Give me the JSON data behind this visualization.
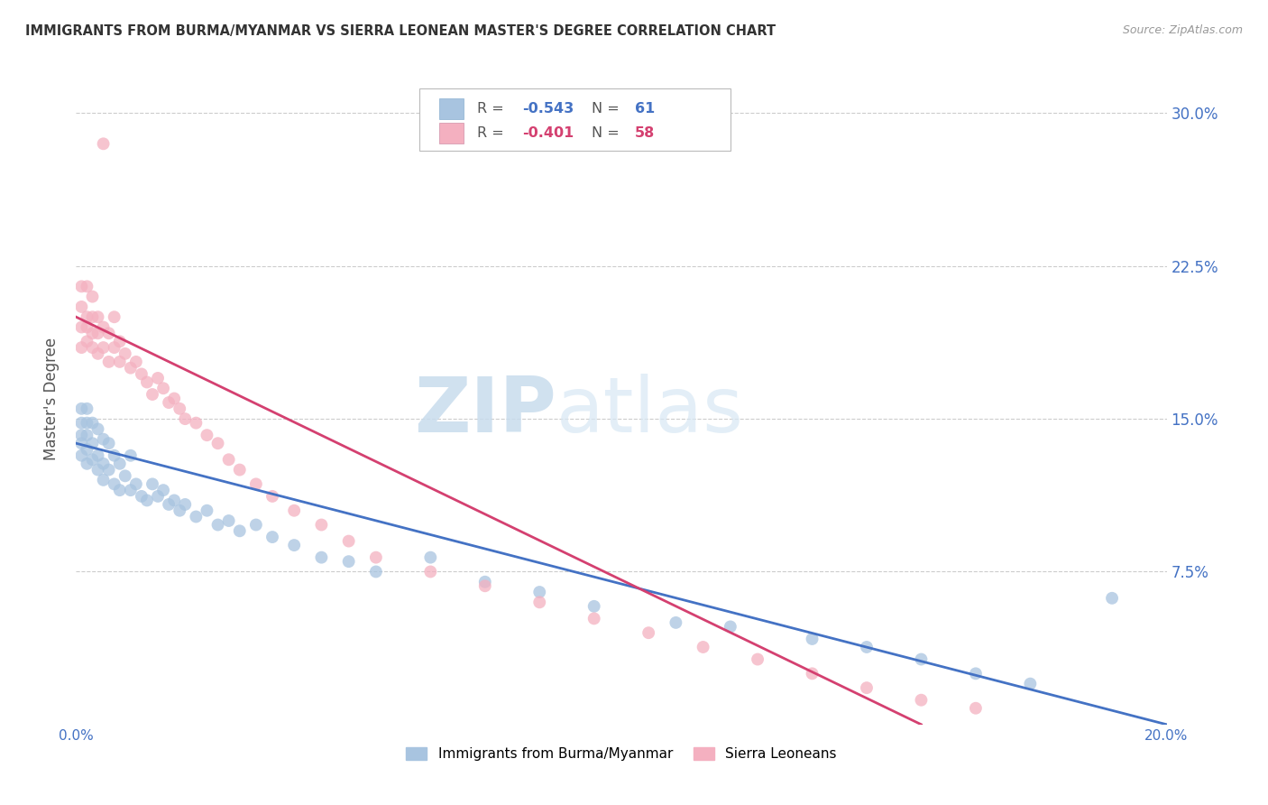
{
  "title": "IMMIGRANTS FROM BURMA/MYANMAR VS SIERRA LEONEAN MASTER'S DEGREE CORRELATION CHART",
  "source": "Source: ZipAtlas.com",
  "ylabel": "Master's Degree",
  "ytick_labels": [
    "30.0%",
    "22.5%",
    "15.0%",
    "7.5%"
  ],
  "ytick_values": [
    0.3,
    0.225,
    0.15,
    0.075
  ],
  "xlim": [
    0.0,
    0.2
  ],
  "ylim": [
    0.0,
    0.32
  ],
  "watermark_zip": "ZIP",
  "watermark_atlas": "atlas",
  "blue_scatter_x": [
    0.001,
    0.001,
    0.001,
    0.001,
    0.001,
    0.002,
    0.002,
    0.002,
    0.002,
    0.002,
    0.003,
    0.003,
    0.003,
    0.004,
    0.004,
    0.004,
    0.005,
    0.005,
    0.005,
    0.006,
    0.006,
    0.007,
    0.007,
    0.008,
    0.008,
    0.009,
    0.01,
    0.01,
    0.011,
    0.012,
    0.013,
    0.014,
    0.015,
    0.016,
    0.017,
    0.018,
    0.019,
    0.02,
    0.022,
    0.024,
    0.026,
    0.028,
    0.03,
    0.033,
    0.036,
    0.04,
    0.045,
    0.05,
    0.055,
    0.065,
    0.075,
    0.085,
    0.095,
    0.11,
    0.12,
    0.135,
    0.145,
    0.155,
    0.165,
    0.175,
    0.19
  ],
  "blue_scatter_y": [
    0.155,
    0.148,
    0.142,
    0.138,
    0.132,
    0.155,
    0.148,
    0.142,
    0.135,
    0.128,
    0.148,
    0.138,
    0.13,
    0.145,
    0.132,
    0.125,
    0.14,
    0.128,
    0.12,
    0.138,
    0.125,
    0.132,
    0.118,
    0.128,
    0.115,
    0.122,
    0.132,
    0.115,
    0.118,
    0.112,
    0.11,
    0.118,
    0.112,
    0.115,
    0.108,
    0.11,
    0.105,
    0.108,
    0.102,
    0.105,
    0.098,
    0.1,
    0.095,
    0.098,
    0.092,
    0.088,
    0.082,
    0.08,
    0.075,
    0.082,
    0.07,
    0.065,
    0.058,
    0.05,
    0.048,
    0.042,
    0.038,
    0.032,
    0.025,
    0.02,
    0.062
  ],
  "pink_scatter_x": [
    0.001,
    0.001,
    0.001,
    0.001,
    0.002,
    0.002,
    0.002,
    0.002,
    0.003,
    0.003,
    0.003,
    0.003,
    0.004,
    0.004,
    0.004,
    0.005,
    0.005,
    0.006,
    0.006,
    0.007,
    0.007,
    0.008,
    0.008,
    0.009,
    0.01,
    0.011,
    0.012,
    0.013,
    0.014,
    0.015,
    0.016,
    0.017,
    0.018,
    0.019,
    0.02,
    0.022,
    0.024,
    0.026,
    0.028,
    0.03,
    0.033,
    0.036,
    0.04,
    0.045,
    0.05,
    0.055,
    0.065,
    0.075,
    0.085,
    0.095,
    0.105,
    0.115,
    0.125,
    0.135,
    0.145,
    0.155,
    0.165,
    0.005
  ],
  "pink_scatter_y": [
    0.215,
    0.205,
    0.195,
    0.185,
    0.215,
    0.2,
    0.195,
    0.188,
    0.21,
    0.2,
    0.192,
    0.185,
    0.2,
    0.192,
    0.182,
    0.195,
    0.185,
    0.192,
    0.178,
    0.185,
    0.2,
    0.188,
    0.178,
    0.182,
    0.175,
    0.178,
    0.172,
    0.168,
    0.162,
    0.17,
    0.165,
    0.158,
    0.16,
    0.155,
    0.15,
    0.148,
    0.142,
    0.138,
    0.13,
    0.125,
    0.118,
    0.112,
    0.105,
    0.098,
    0.09,
    0.082,
    0.075,
    0.068,
    0.06,
    0.052,
    0.045,
    0.038,
    0.032,
    0.025,
    0.018,
    0.012,
    0.008,
    0.285
  ],
  "blue_line_x": [
    0.0,
    0.2
  ],
  "blue_line_y": [
    0.138,
    0.0
  ],
  "pink_line_x": [
    0.0,
    0.155
  ],
  "pink_line_y": [
    0.2,
    0.0
  ],
  "scatter_size": 100,
  "blue_color": "#a8c4e0",
  "pink_color": "#f4b0c0",
  "blue_line_color": "#4472c4",
  "pink_line_color": "#d44070",
  "grid_color": "#cccccc",
  "background_color": "#ffffff",
  "axis_label_color": "#4472c4",
  "legend_label_r": "R = ",
  "legend_label_n": "  N = ",
  "blue_r_val": "-0.543",
  "blue_n_val": "61",
  "pink_r_val": "-0.401",
  "pink_n_val": "58",
  "bottom_legend_blue": "Immigrants from Burma/Myanmar",
  "bottom_legend_pink": "Sierra Leoneans"
}
